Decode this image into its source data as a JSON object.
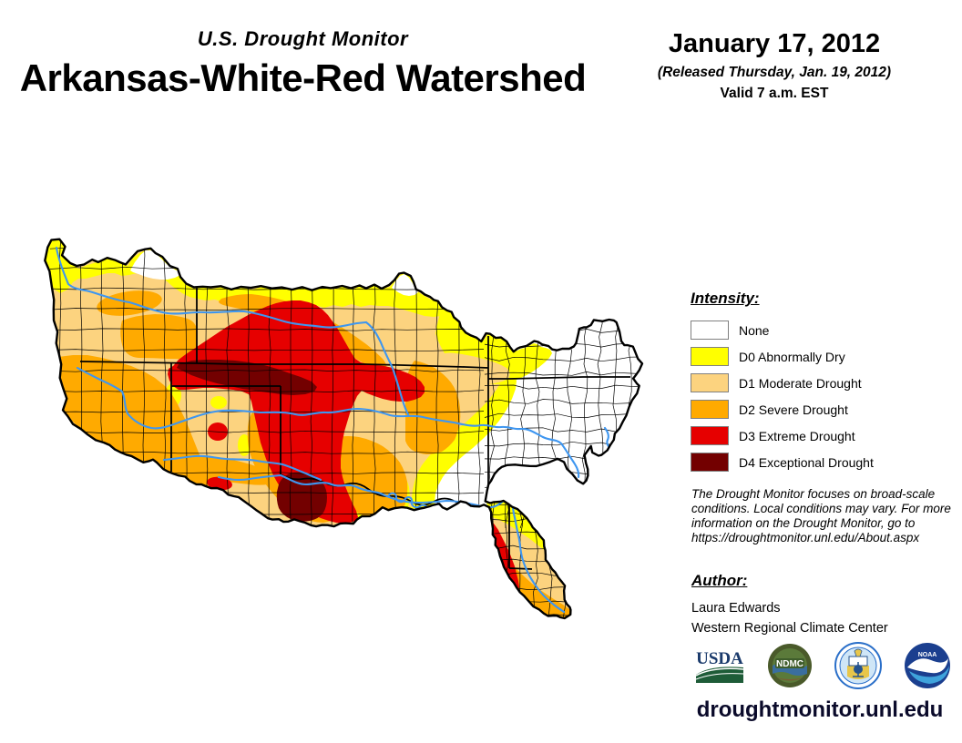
{
  "header": {
    "subtitle": "U.S. Drought Monitor",
    "title": "Arkansas-White-Red Watershed"
  },
  "date": {
    "main": "January 17, 2012",
    "released": "(Released Thursday, Jan. 19, 2012)",
    "valid": "Valid 7 a.m. EST"
  },
  "legend": {
    "title": "Intensity:",
    "items": [
      {
        "label": "None",
        "color": "#FFFFFF"
      },
      {
        "label": "D0 Abnormally Dry",
        "color": "#FFFF00"
      },
      {
        "label": "D1 Moderate Drought",
        "color": "#FCD37F"
      },
      {
        "label": "D2 Severe Drought",
        "color": "#FFAA00"
      },
      {
        "label": "D3 Extreme Drought",
        "color": "#E60000"
      },
      {
        "label": "D4 Exceptional Drought",
        "color": "#730000"
      }
    ]
  },
  "disclaimer": {
    "line1": "The Drought Monitor focuses on broad-scale",
    "line2": "conditions. Local conditions may vary. For more",
    "line3": "information on the Drought Monitor, go to",
    "line4": "https://droughtmonitor.unl.edu/About.aspx"
  },
  "author": {
    "title": "Author:",
    "name": "Laura Edwards",
    "org": "Western Regional Climate Center"
  },
  "logos": [
    {
      "name": "USDA"
    },
    {
      "name": "NDMC"
    },
    {
      "name": "DOC"
    },
    {
      "name": "NOAA"
    }
  ],
  "site_url": "droughtmonitor.unl.edu",
  "map": {
    "region": "Arkansas-White-Red Watershed",
    "colors": {
      "none": "#FFFFFF",
      "d0": "#FFFF00",
      "d1": "#FCD37F",
      "d2": "#FFAA00",
      "d3": "#E60000",
      "d4": "#730000",
      "river": "#3E96F0",
      "border": "#000000"
    }
  }
}
